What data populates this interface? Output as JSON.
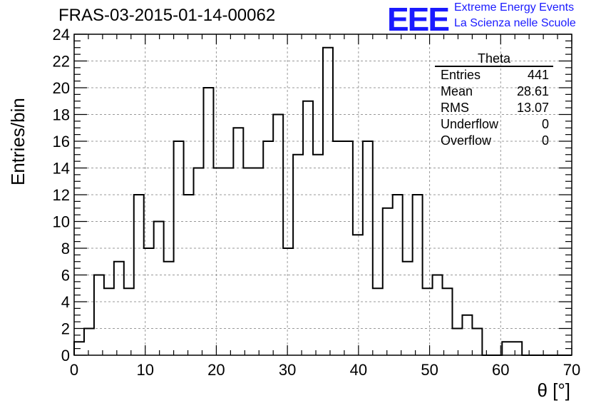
{
  "title": "FRAS-03-2015-01-14-00062",
  "logo": {
    "mark": "EEE",
    "line1": "Extreme Energy Events",
    "line2": "La Scienza nelle Scuole",
    "color": "#1a1aff"
  },
  "stats": {
    "name": "Theta",
    "rows": [
      {
        "label": "Entries",
        "value": "441"
      },
      {
        "label": "Mean",
        "value": "28.61"
      },
      {
        "label": "RMS",
        "value": "13.07"
      },
      {
        "label": "Underflow",
        "value": "0"
      },
      {
        "label": "Overflow",
        "value": "0"
      }
    ]
  },
  "chart_data": {
    "type": "bar",
    "style": "step-histogram",
    "title": "FRAS-03-2015-01-14-00062",
    "xlabel": "θ [°]",
    "ylabel": "Entries/bin",
    "xlim": [
      0,
      70
    ],
    "ylim": [
      0,
      24
    ],
    "bin_width": 1.4,
    "bin_low_edges": [
      0,
      1.4,
      2.8,
      4.2,
      5.6,
      7,
      8.4,
      9.8,
      11.2,
      12.6,
      14,
      15.4,
      16.8,
      18.2,
      19.6,
      21,
      22.4,
      23.8,
      25.2,
      26.6,
      28,
      29.4,
      30.8,
      32.2,
      33.6,
      35,
      36.4,
      37.8,
      39.2,
      40.6,
      42,
      43.4,
      44.8,
      46.2,
      47.6,
      49,
      50.4,
      51.8,
      53.2,
      54.6,
      56,
      57.4,
      58.8,
      60.2,
      61.6,
      63,
      64.4,
      65.8,
      67.2,
      68.6
    ],
    "values": [
      1,
      2,
      6,
      5,
      7,
      5,
      12,
      8,
      10,
      7,
      16,
      12,
      14,
      20,
      14,
      14,
      17,
      14,
      14,
      16,
      18,
      8,
      15,
      19,
      15,
      23,
      16,
      16,
      9,
      16,
      5,
      11,
      12,
      7,
      12,
      5,
      6,
      5,
      2,
      3,
      2,
      0,
      0,
      1,
      1,
      0,
      0,
      0,
      0,
      0
    ],
    "x_ticks": [
      0,
      10,
      20,
      30,
      40,
      50,
      60,
      70
    ],
    "y_ticks": [
      0,
      2,
      4,
      6,
      8,
      10,
      12,
      14,
      16,
      18,
      20,
      22,
      24
    ],
    "grid": true
  }
}
